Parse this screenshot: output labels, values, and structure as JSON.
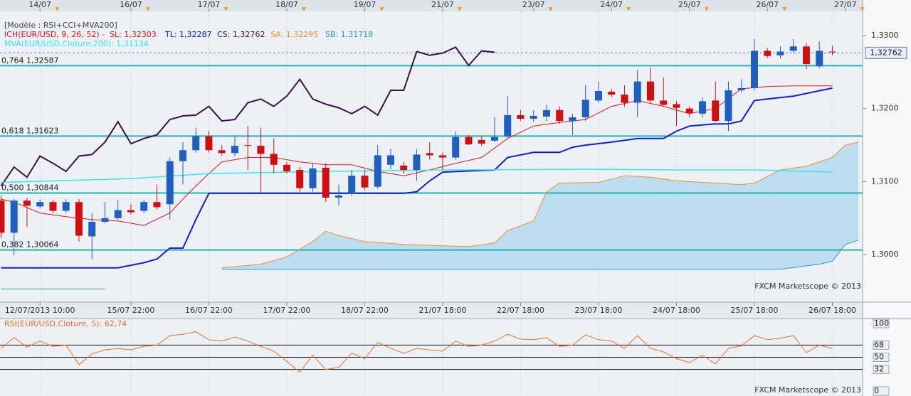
{
  "chart_data": [
    {
      "type": "candlestick",
      "title": "[Modèle : RSI+CCI+MVA200]",
      "watermark": "FXCM Marketscope © 2013",
      "up_color": "#1f5fbf",
      "down_color": "#d01010",
      "open": [
        1.3074,
        1.303,
        1.3074,
        1.3066,
        1.3072,
        1.306,
        1.3072,
        1.3025,
        1.3045,
        1.305,
        1.3061,
        1.306,
        1.3072,
        1.3069,
        1.3128,
        1.3143,
        1.3162,
        1.3143,
        1.3139,
        1.315,
        1.3149,
        1.3138,
        1.3123,
        1.3116,
        1.3091,
        1.3119,
        1.3078,
        1.3083,
        1.3108,
        1.3093,
        1.3123,
        1.3122,
        1.3116,
        1.3139,
        1.3136,
        1.3133,
        1.3161,
        1.3157,
        1.3156,
        1.3162,
        1.3191,
        1.3186,
        1.3189,
        1.3198,
        1.3183,
        1.3188,
        1.3211,
        1.3223,
        1.3219,
        1.3208,
        1.3237,
        1.3211,
        1.3206,
        1.32,
        1.3193,
        1.3211,
        1.3183,
        1.3225,
        1.3228,
        1.3279,
        1.3273,
        1.3279,
        1.3285,
        1.3258,
        1.3278
      ],
      "high": [
        1.3081,
        1.3076,
        1.3078,
        1.3075,
        1.3075,
        1.3076,
        1.3076,
        1.3057,
        1.3072,
        1.3075,
        1.3069,
        1.3075,
        1.3096,
        1.3133,
        1.3154,
        1.3174,
        1.3169,
        1.315,
        1.3162,
        1.3176,
        1.3174,
        1.3159,
        1.3127,
        1.312,
        1.3125,
        1.3125,
        1.3096,
        1.3116,
        1.3116,
        1.315,
        1.3145,
        1.3127,
        1.3145,
        1.3154,
        1.314,
        1.3169,
        1.3164,
        1.3162,
        1.3188,
        1.3217,
        1.3198,
        1.3198,
        1.3205,
        1.3203,
        1.3193,
        1.3232,
        1.3237,
        1.3227,
        1.3232,
        1.3253,
        1.3256,
        1.3242,
        1.321,
        1.3203,
        1.3215,
        1.3237,
        1.3237,
        1.324,
        1.3295,
        1.3283,
        1.3285,
        1.3295,
        1.329,
        1.3292,
        1.3286
      ],
      "low": [
        1.3023,
        1.2999,
        1.3038,
        1.3063,
        1.3057,
        1.3057,
        1.3018,
        1.2994,
        1.3043,
        1.3048,
        1.3055,
        1.3057,
        1.3062,
        1.3048,
        1.3096,
        1.314,
        1.314,
        1.3135,
        1.3135,
        1.3116,
        1.3084,
        1.3111,
        1.3111,
        1.3086,
        1.3086,
        1.3072,
        1.3067,
        1.308,
        1.3088,
        1.309,
        1.3117,
        1.3111,
        1.3101,
        1.313,
        1.3116,
        1.313,
        1.315,
        1.3149,
        1.3154,
        1.3159,
        1.3183,
        1.3182,
        1.3183,
        1.3179,
        1.3164,
        1.3183,
        1.3208,
        1.3216,
        1.3203,
        1.3188,
        1.3208,
        1.3203,
        1.3176,
        1.3188,
        1.3188,
        1.3182,
        1.3169,
        1.3222,
        1.3225,
        1.3269,
        1.3269,
        1.3276,
        1.3254,
        1.3255,
        1.3273
      ],
      "close": [
        1.303,
        1.3074,
        1.3067,
        1.3072,
        1.306,
        1.3072,
        1.3026,
        1.3045,
        1.305,
        1.3061,
        1.3058,
        1.3072,
        1.3065,
        1.3128,
        1.3143,
        1.3162,
        1.3143,
        1.3139,
        1.3149,
        1.3149,
        1.3138,
        1.3123,
        1.3114,
        1.3091,
        1.3118,
        1.3078,
        1.3081,
        1.3108,
        1.3092,
        1.3136,
        1.3136,
        1.3116,
        1.3137,
        1.3136,
        1.3133,
        1.3161,
        1.3151,
        1.3152,
        1.3161,
        1.3191,
        1.3186,
        1.319,
        1.3198,
        1.3183,
        1.3188,
        1.3212,
        1.3224,
        1.3219,
        1.3208,
        1.3237,
        1.3211,
        1.3205,
        1.3201,
        1.3194,
        1.321,
        1.3183,
        1.3225,
        1.3228,
        1.3279,
        1.3272,
        1.3278,
        1.3285,
        1.3261,
        1.3279,
        1.3277
      ],
      "xlim": [
        -0.08,
        66.33
      ],
      "xticks": [
        {
          "value": 3,
          "label": "12/07/2013 10:00"
        },
        {
          "value": 10,
          "label": "15/07 22:00"
        },
        {
          "value": 16,
          "label": "16/07 22:00"
        },
        {
          "value": 22,
          "label": "17/07 22:00"
        },
        {
          "value": 28,
          "label": "18/07 22:00"
        },
        {
          "value": 34,
          "label": "21/07 18:00"
        },
        {
          "value": 40,
          "label": "22/07 18:00"
        },
        {
          "value": 46,
          "label": "23/07 18:00"
        },
        {
          "value": 52,
          "label": "24/07 18:00"
        },
        {
          "value": 58,
          "label": "25/07 18:00"
        },
        {
          "value": 64,
          "label": "26/07 18:00"
        }
      ],
      "top_ticks": [
        {
          "value": 3,
          "label": "14/07"
        },
        {
          "value": 10,
          "label": "16/07"
        },
        {
          "value": 16,
          "label": "17/07"
        },
        {
          "value": 22,
          "label": "18/07"
        },
        {
          "value": 28,
          "label": "19/07"
        },
        {
          "value": 34,
          "label": "21/07"
        },
        {
          "value": 41,
          "label": "23/07"
        },
        {
          "value": 47,
          "label": "24/07"
        },
        {
          "value": 53,
          "label": "25/07"
        },
        {
          "value": 59,
          "label": "26/07"
        },
        {
          "value": 65,
          "label": "27/07"
        }
      ],
      "ylim": [
        1.2935,
        1.3333
      ],
      "yticks": [
        {
          "value": 1.3,
          "label": "1,3000"
        },
        {
          "value": 1.31,
          "label": "1,3100"
        },
        {
          "value": 1.32,
          "label": "1,3200"
        },
        {
          "value": 1.33,
          "label": "1,3300"
        }
      ],
      "levels": [
        {
          "value": 1.32587,
          "label": "0,764 1,32587"
        },
        {
          "value": 1.31623,
          "label": "0,618 1,31623"
        },
        {
          "value": 1.30844,
          "label": "0,500 1,30844"
        },
        {
          "value": 1.30064,
          "label": "0,382 1,30064"
        }
      ],
      "level_color": "#22b4b4",
      "last_price": {
        "value": 1.32762,
        "label": "1,32762"
      },
      "cloud_series": [
        3,
        4
      ],
      "cloud_color": "#b9dcef",
      "series": [
        {
          "name": "ICH(EUR/USD, 9, 26, 52) -  SL: 1,32303",
          "color": "#e01818",
          "width": 1,
          "x": [
            0,
            1,
            3,
            5,
            7,
            9,
            11,
            13,
            14,
            15,
            16,
            17,
            19,
            21,
            23,
            25,
            27,
            29,
            31,
            33,
            35,
            37,
            39,
            41,
            43,
            45,
            47,
            49,
            51,
            53,
            55,
            57,
            59,
            61,
            64
          ],
          "values": [
            1.3076,
            1.3072,
            1.3057,
            1.3052,
            1.3048,
            1.3046,
            1.304,
            1.3057,
            1.3076,
            1.3094,
            1.3111,
            1.3127,
            1.3133,
            1.3133,
            1.3127,
            1.3123,
            1.3123,
            1.3114,
            1.3108,
            1.3116,
            1.3125,
            1.3133,
            1.3159,
            1.3176,
            1.3181,
            1.3185,
            1.3203,
            1.3211,
            1.3203,
            1.3193,
            1.32,
            1.3227,
            1.323,
            1.3231,
            1.3231
          ]
        },
        {
          "name": "TL: 1,32287",
          "color": "#1020d0",
          "width": 2,
          "x": [
            0,
            9,
            11,
            12,
            13,
            14,
            15,
            16,
            31,
            32,
            33,
            34,
            38,
            39,
            41,
            43,
            44,
            45,
            47,
            49,
            51,
            52,
            53,
            55,
            56,
            57,
            58,
            59,
            61,
            64
          ],
          "values": [
            1.2982,
            1.2982,
            1.2989,
            1.2994,
            1.3009,
            1.3009,
            1.3048,
            1.3084,
            1.3084,
            1.3086,
            1.3101,
            1.3113,
            1.3116,
            1.3133,
            1.314,
            1.314,
            1.3147,
            1.315,
            1.3154,
            1.3159,
            1.3159,
            1.3169,
            1.3176,
            1.3179,
            1.3179,
            1.3183,
            1.3211,
            1.3213,
            1.3217,
            1.3228
          ]
        },
        {
          "name": "CS: 1,32762",
          "color": "#3c1048",
          "width": 2,
          "x": [
            0,
            1,
            2,
            3,
            4,
            5,
            6,
            7,
            8,
            9,
            10,
            11,
            12,
            13,
            14,
            15,
            16,
            17,
            18,
            19,
            20,
            21,
            22,
            23,
            24,
            25,
            26,
            27,
            28,
            29,
            30,
            31,
            32,
            33,
            34,
            35,
            36,
            37,
            38
          ],
          "values": [
            1.3094,
            1.312,
            1.3106,
            1.3135,
            1.3125,
            1.3114,
            1.3135,
            1.3137,
            1.3154,
            1.3182,
            1.3152,
            1.3159,
            1.3164,
            1.3185,
            1.319,
            1.3191,
            1.3203,
            1.3183,
            1.3185,
            1.3208,
            1.3213,
            1.3203,
            1.3217,
            1.324,
            1.3213,
            1.3206,
            1.3201,
            1.3193,
            1.3203,
            1.3191,
            1.3225,
            1.3225,
            1.3278,
            1.3273,
            1.3276,
            1.3284,
            1.3259,
            1.3279,
            1.3277
          ]
        },
        {
          "name": "SA: 1,32295",
          "color": "#f08c30",
          "width": 1,
          "x": [
            17,
            20,
            22,
            24,
            25,
            26,
            28,
            31,
            36,
            38,
            39,
            41,
            42,
            43,
            46,
            48,
            50,
            52,
            55,
            57,
            58,
            60,
            62,
            64,
            65,
            66
          ],
          "values": [
            1.2982,
            1.2987,
            1.2997,
            1.3018,
            1.3032,
            1.3026,
            1.3018,
            1.3014,
            1.3011,
            1.3016,
            1.3033,
            1.3046,
            1.3086,
            1.3098,
            1.3099,
            1.3108,
            1.3106,
            1.3101,
            1.3098,
            1.3096,
            1.3098,
            1.3116,
            1.3121,
            1.3133,
            1.315,
            1.3154
          ]
        },
        {
          "name": "SB: 1,31718",
          "color": "#2a9ad8",
          "width": 1,
          "x": [
            0,
            8,
            9,
            17,
            60,
            63,
            64,
            65,
            66
          ],
          "values": [
            1.2953,
            1.2953,
            null,
            1.298,
            1.298,
            1.2987,
            1.2991,
            1.3014,
            1.302
          ]
        },
        {
          "name": "MVA(EUR/USD.Cloture,200): 1,31134",
          "color": "#30e8f0",
          "width": 1.5,
          "x": [
            0,
            10,
            16,
            25,
            35,
            45,
            52,
            58,
            64
          ],
          "values": [
            1.3099,
            1.3104,
            1.3111,
            1.3114,
            1.3116,
            1.3117,
            1.3116,
            1.3116,
            1.3113
          ]
        }
      ]
    },
    {
      "type": "line",
      "title": "RSI(EUR/USD.Cloture, 5): 62,74",
      "watermark": "FXCM Marketscope © 2013",
      "color": "#e8702a",
      "xlim": [
        -0.08,
        66.33
      ],
      "values": [
        63,
        79,
        65,
        74,
        66,
        68,
        39,
        55,
        61,
        63,
        61,
        66,
        68,
        82,
        84,
        88,
        76,
        74,
        80,
        74,
        66,
        59,
        44,
        28,
        53,
        32,
        35,
        56,
        48,
        72,
        63,
        56,
        63,
        61,
        59,
        74,
        66,
        68,
        74,
        84,
        77,
        76,
        79,
        66,
        68,
        83,
        76,
        74,
        63,
        82,
        63,
        58,
        48,
        42,
        53,
        40,
        63,
        67,
        82,
        76,
        78,
        82,
        57,
        68,
        62.74
      ],
      "ylim": [
        0,
        100
      ],
      "yticks": [
        100,
        68,
        50,
        32,
        0
      ],
      "levels": [
        68,
        50,
        32
      ]
    }
  ]
}
